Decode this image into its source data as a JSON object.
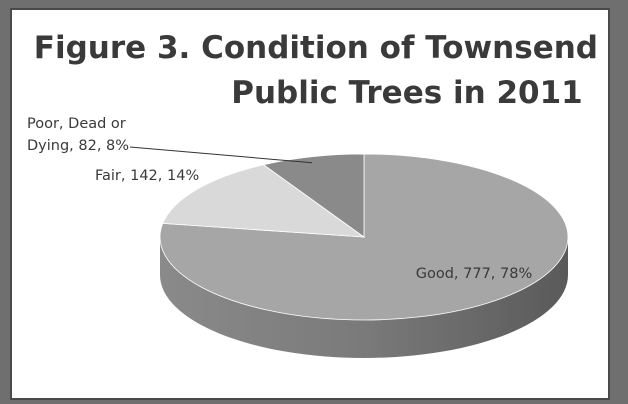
{
  "chart_data": {
    "type": "pie",
    "style": "3d",
    "title_lines": [
      "Figure 3. Condition of Townsend",
      "Public Trees in 2011"
    ],
    "slices": [
      {
        "name": "Good",
        "value": 777,
        "percent": 78,
        "color": "#a6a6a6",
        "label_lines": [
          "Good, 777, 78%"
        ]
      },
      {
        "name": "Fair",
        "value": 142,
        "percent": 14,
        "color": "#d9d9d9",
        "label_lines": [
          "Fair, 142, 14%"
        ]
      },
      {
        "name": "Poor, Dead or Dying",
        "value": 82,
        "percent": 8,
        "color": "#8a8a8a",
        "label_lines": [
          "Poor, Dead or",
          "Dying, 82, 8%"
        ]
      }
    ]
  }
}
